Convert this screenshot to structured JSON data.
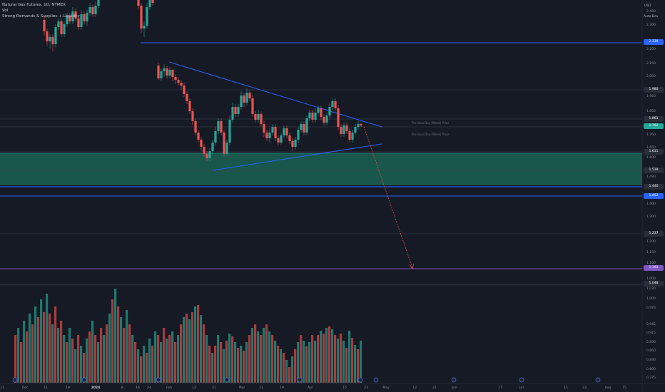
{
  "legend": {
    "symbol": "Natural Gas Futures",
    "interval": "1D",
    "exchange": "NYMEX",
    "vol": "Vol",
    "indicator": "Strong Demands & Supplies + Liquidity"
  },
  "price_axis": {
    "currency": "USD",
    "mode": "Auto Bcu",
    "ticks": [
      "2.450",
      "2.300",
      "2.250",
      "2.150",
      "2.050",
      "1.950",
      "1.850",
      "1.760",
      "1.650",
      "1.600",
      "1.490",
      "1.400",
      "1.300",
      "1.200",
      "1.150",
      "1.100",
      "1.000"
    ],
    "volume_ticks": [
      "1.030",
      "1.000",
      "0.970",
      "0.945",
      "0.915",
      "0.890",
      "0.860",
      "0.830",
      "0.800",
      "0.775"
    ]
  },
  "badges": [
    {
      "text": "2.339",
      "color": "#2962ff"
    },
    {
      "text": "1.980",
      "color": "#2a2e39"
    },
    {
      "text": "1.801",
      "color": "#2a2e39"
    },
    {
      "text": "1.762",
      "color": "#26a69a"
    },
    {
      "text": "1.611",
      "color": "#2a2e39"
    },
    {
      "text": "1.518",
      "color": "#2a2e39"
    },
    {
      "text": "1.440",
      "color": "#2a2e39"
    },
    {
      "text": "1.402",
      "color": "#2962ff"
    },
    {
      "text": "1.237",
      "color": "#2a2e39"
    },
    {
      "text": "1.101",
      "color": "#7e57c2"
    },
    {
      "text": "1.048",
      "color": "#2a2e39"
    }
  ],
  "time_axis": [
    {
      "label": "11",
      "bold": false
    },
    {
      "label": "Dec",
      "bold": false
    },
    {
      "label": "11",
      "bold": false
    },
    {
      "label": "19",
      "bold": false
    },
    {
      "label": "2024",
      "bold": true
    },
    {
      "label": "9",
      "bold": false
    },
    {
      "label": "16",
      "bold": false
    },
    {
      "label": "24",
      "bold": false
    },
    {
      "label": "Feb",
      "bold": false
    },
    {
      "label": "12",
      "bold": false
    },
    {
      "label": "21",
      "bold": false
    },
    {
      "label": "Mar",
      "bold": false
    },
    {
      "label": "11",
      "bold": false
    },
    {
      "label": "19",
      "bold": false
    },
    {
      "label": "Apr",
      "bold": false
    },
    {
      "label": "15",
      "bold": false
    },
    {
      "label": "23",
      "bold": false
    },
    {
      "label": "May",
      "bold": false
    },
    {
      "label": "13",
      "bold": false
    },
    {
      "label": "21",
      "bold": false
    },
    {
      "label": "Jun",
      "bold": false
    },
    {
      "label": "17",
      "bold": false
    },
    {
      "label": "Jul",
      "bold": false
    },
    {
      "label": "15",
      "bold": false
    },
    {
      "label": "23",
      "bold": false
    },
    {
      "label": "Aug",
      "bold": false
    },
    {
      "label": "15",
      "bold": false
    }
  ],
  "level_labels": {
    "prev_high": "Previous Day (Week) Price",
    "prev_low": "Previous Day (Week) Price"
  },
  "colors": {
    "up": "#26a69a",
    "down": "#ef5350",
    "trend": "#2962ff",
    "zone": "#1b6b5a",
    "projection": "#ef5350",
    "purple": "#7e57c2"
  }
}
